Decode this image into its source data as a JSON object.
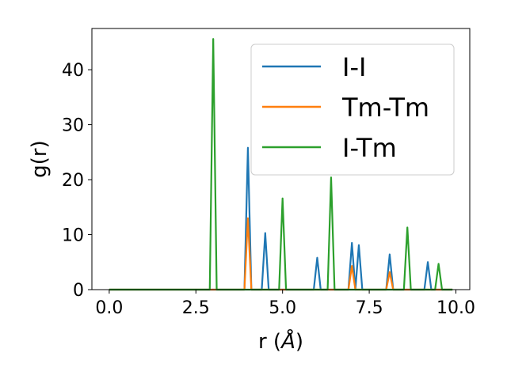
{
  "chart_data": {
    "type": "line",
    "xlabel": "r (",
    "xlabel_symbol": "Å",
    "xlabel_close": ")",
    "ylabel": "g(r)",
    "xlim": [
      -0.5,
      10.4
    ],
    "ylim": [
      0,
      47.5
    ],
    "xticks": [
      0.0,
      2.5,
      5.0,
      7.5,
      10.0
    ],
    "xtick_labels": [
      "0.0",
      "2.5",
      "5.0",
      "7.5",
      "10.0"
    ],
    "yticks": [
      0,
      10,
      20,
      30,
      40
    ],
    "ytick_labels": [
      "0",
      "10",
      "20",
      "30",
      "40"
    ],
    "grid": false,
    "legend_position": "top-right",
    "series": [
      {
        "name": "I-I",
        "color": "#1f77b4",
        "points": [
          [
            0.0,
            0
          ],
          [
            3.9,
            0
          ],
          [
            4.0,
            25.8
          ],
          [
            4.1,
            0
          ],
          [
            4.4,
            0
          ],
          [
            4.5,
            10.3
          ],
          [
            4.6,
            0
          ],
          [
            5.9,
            0
          ],
          [
            6.0,
            5.8
          ],
          [
            6.1,
            0
          ],
          [
            6.9,
            0
          ],
          [
            7.0,
            8.5
          ],
          [
            7.1,
            0
          ],
          [
            7.2,
            8.1
          ],
          [
            7.3,
            0
          ],
          [
            7.99,
            0
          ],
          [
            8.09,
            6.4
          ],
          [
            8.19,
            0
          ],
          [
            9.09,
            0
          ],
          [
            9.19,
            5.0
          ],
          [
            9.29,
            0
          ],
          [
            9.9,
            0
          ]
        ]
      },
      {
        "name": "Tm-Tm",
        "color": "#ff7f0e",
        "points": [
          [
            0.0,
            0
          ],
          [
            3.9,
            0
          ],
          [
            4.0,
            13.0
          ],
          [
            4.1,
            0
          ],
          [
            6.9,
            0
          ],
          [
            7.0,
            4.3
          ],
          [
            7.1,
            0
          ],
          [
            7.99,
            0
          ],
          [
            8.09,
            3.2
          ],
          [
            8.19,
            0
          ],
          [
            9.9,
            0
          ]
        ]
      },
      {
        "name": "I-Tm",
        "color": "#2ca02c",
        "points": [
          [
            0.0,
            0
          ],
          [
            2.9,
            0
          ],
          [
            3.0,
            45.6
          ],
          [
            3.1,
            0
          ],
          [
            4.9,
            0
          ],
          [
            5.0,
            16.6
          ],
          [
            5.1,
            0
          ],
          [
            6.3,
            0
          ],
          [
            6.4,
            20.4
          ],
          [
            6.5,
            0
          ],
          [
            8.5,
            0
          ],
          [
            8.6,
            11.3
          ],
          [
            8.7,
            0
          ],
          [
            9.4,
            0
          ],
          [
            9.5,
            4.7
          ],
          [
            9.6,
            0
          ],
          [
            9.9,
            0
          ]
        ]
      }
    ]
  }
}
